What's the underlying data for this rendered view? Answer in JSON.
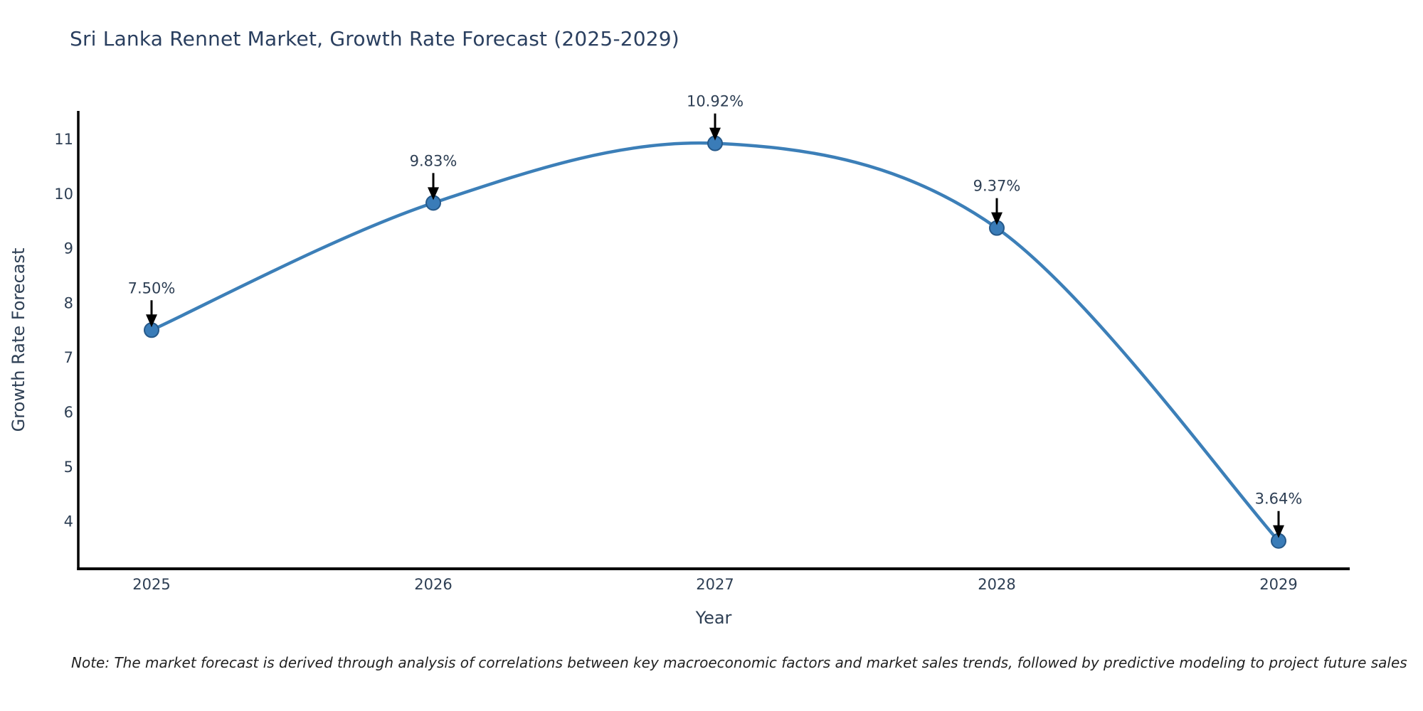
{
  "chart": {
    "title": "Sri Lanka Rennet Market, Growth Rate Forecast (2025-2029)",
    "xlabel": "Year",
    "ylabel": "Growth Rate Forecast",
    "note": "Note: The market forecast is derived through analysis of correlations between key macroeconomic factors and market sales trends, followed by predictive modeling to project future sales",
    "colors": {
      "line": "#3c7fb8",
      "marker_fill": "#3a7cb8",
      "marker_edge": "#26598a",
      "axis": "#000000",
      "tick_text": "#2e3f54",
      "annotation_text": "#2e3f54",
      "arrow": "#000000",
      "title_text": "#2a3f5f"
    }
  },
  "chart_data": {
    "type": "line",
    "x": [
      2025,
      2026,
      2027,
      2028,
      2029
    ],
    "values": [
      7.5,
      9.83,
      10.92,
      9.37,
      3.64
    ],
    "point_labels": [
      "7.50%",
      "9.83%",
      "10.92%",
      "9.37%",
      "3.64%"
    ],
    "title": "Sri Lanka Rennet Market, Growth Rate Forecast (2025-2029)",
    "xlabel": "Year",
    "ylabel": "Growth Rate Forecast",
    "yticks": [
      4,
      5,
      6,
      7,
      8,
      9,
      10,
      11
    ],
    "ylim": [
      3.1,
      11.5
    ],
    "grid": false,
    "legend": "none",
    "line_style": "smooth-spline",
    "marker": "circle",
    "annotations": "value labels with downward arrows above each point"
  }
}
